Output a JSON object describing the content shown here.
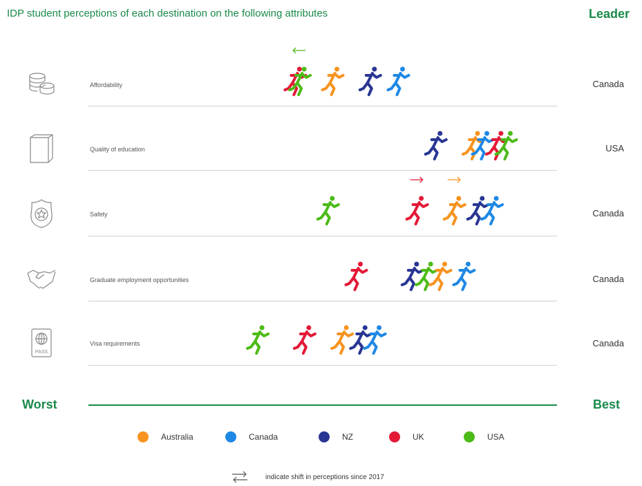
{
  "title": "IDP student perceptions of each destination on the following attributes",
  "leader_header": "Leader",
  "axis": {
    "worst": "Worst",
    "best": "Best"
  },
  "legend": [
    {
      "label": "Australia",
      "color": "#f7931e"
    },
    {
      "label": "Canada",
      "color": "#1e88e5"
    },
    {
      "label": "NZ",
      "color": "#283593"
    },
    {
      "label": "UK",
      "color": "#e31937"
    },
    {
      "label": "USA",
      "color": "#4cbb17"
    }
  ],
  "shift_note": "indicate shift in perceptions since 2017",
  "chart_data": {
    "type": "scatter",
    "x_axis": {
      "min_label": "Worst",
      "max_label": "Best"
    },
    "series_order": [
      "Australia",
      "Canada",
      "NZ",
      "UK",
      "USA"
    ],
    "rows": [
      {
        "attribute": "Affordability",
        "icon": "coins-icon",
        "leader": "Canada",
        "values": {
          "Australia": 0.52,
          "Canada": 0.66,
          "NZ": 0.6,
          "UK": 0.44,
          "USA": 0.45
        },
        "shifts": [
          {
            "country": "USA",
            "direction": "left"
          }
        ]
      },
      {
        "attribute": "Quality of education",
        "icon": "book-icon",
        "leader": "USA",
        "values": {
          "Australia": 0.82,
          "Canada": 0.84,
          "NZ": 0.74,
          "UK": 0.87,
          "USA": 0.89
        },
        "shifts": []
      },
      {
        "attribute": "Safety",
        "icon": "badge-icon",
        "leader": "Canada",
        "values": {
          "Australia": 0.78,
          "Canada": 0.86,
          "NZ": 0.83,
          "UK": 0.7,
          "USA": 0.51
        },
        "shifts": [
          {
            "country": "UK",
            "direction": "right"
          },
          {
            "country": "Australia",
            "direction": "right"
          }
        ]
      },
      {
        "attribute": "Graduate employment opportunities",
        "icon": "handshake-icon",
        "leader": "Canada",
        "values": {
          "Australia": 0.75,
          "Canada": 0.8,
          "NZ": 0.69,
          "UK": 0.57,
          "USA": 0.72
        },
        "shifts": []
      },
      {
        "attribute": "Visa requirements",
        "icon": "passport-icon",
        "leader": "Canada",
        "values": {
          "Australia": 0.54,
          "Canada": 0.61,
          "NZ": 0.58,
          "UK": 0.46,
          "USA": 0.36
        },
        "shifts": []
      }
    ]
  },
  "passport_text": "PASS"
}
